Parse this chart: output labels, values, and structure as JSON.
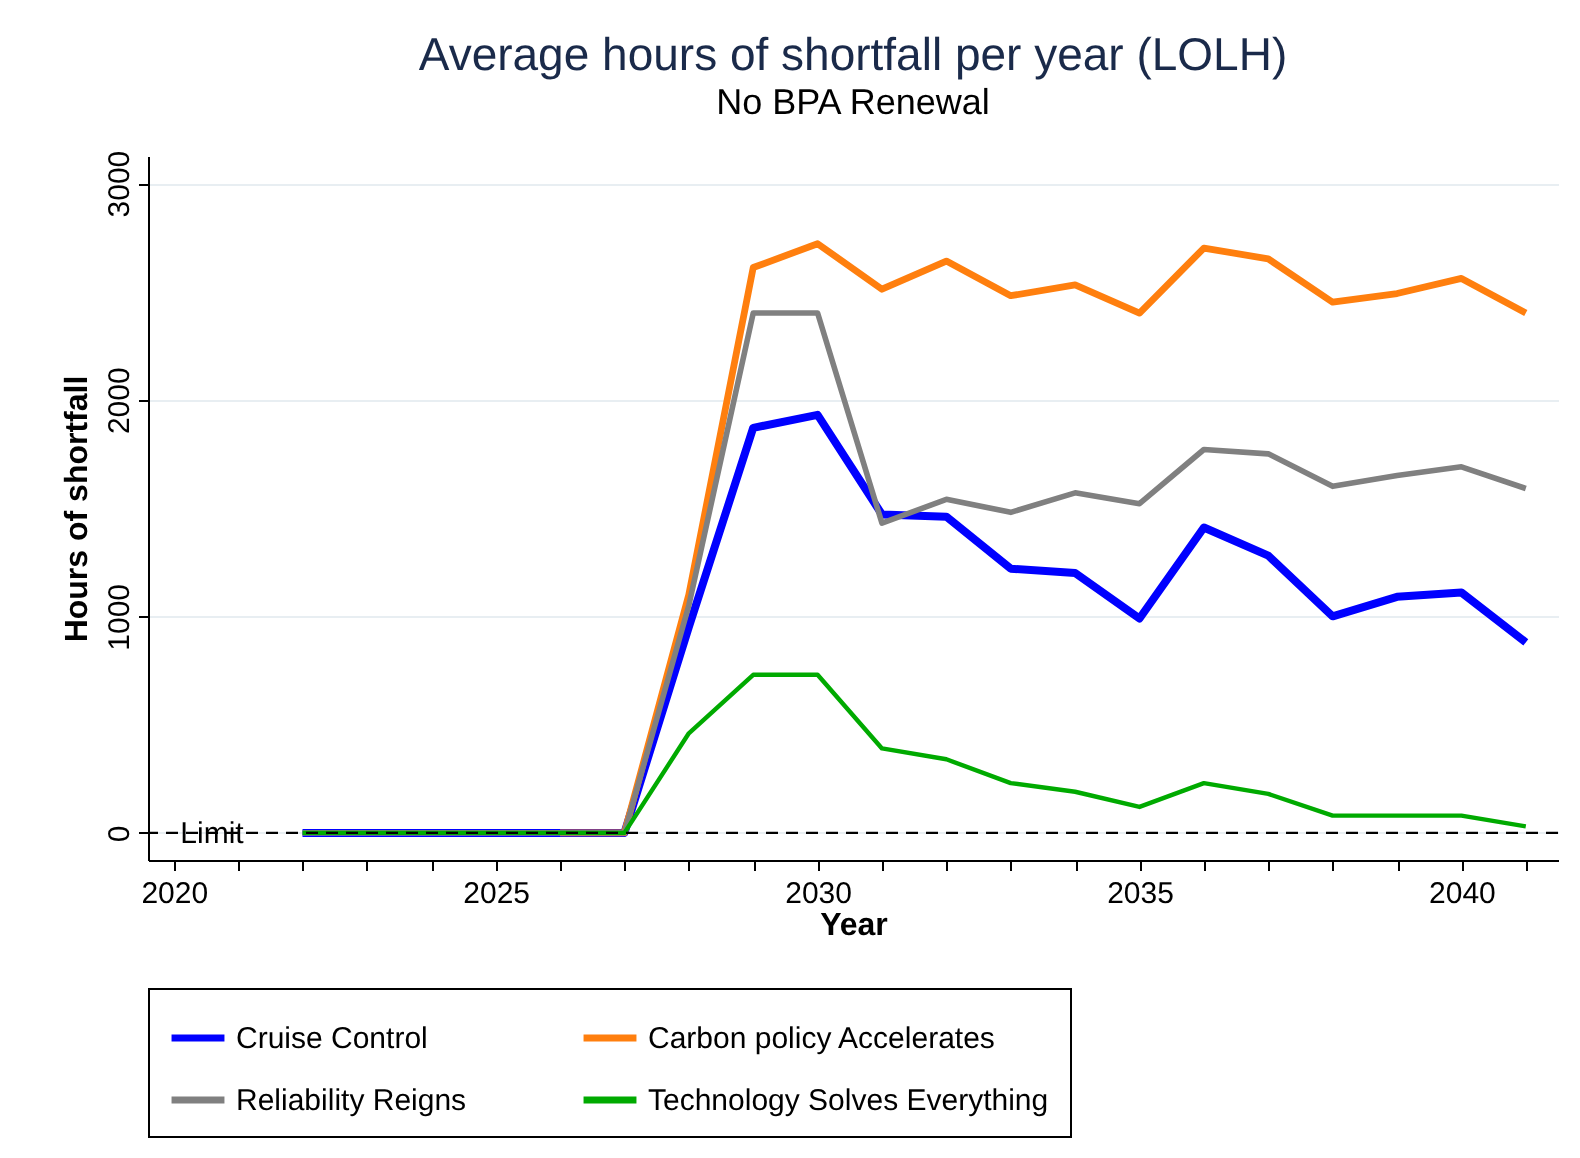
{
  "chart_data": {
    "type": "line",
    "title": "Average hours of shortfall per year (LOLH)",
    "subtitle": "No BPA Renewal",
    "xlabel": "Year",
    "ylabel": "Hours of shortfall",
    "x": [
      2022,
      2023,
      2024,
      2025,
      2026,
      2027,
      2028,
      2029,
      2030,
      2031,
      2032,
      2033,
      2034,
      2035,
      2036,
      2037,
      2038,
      2039,
      2040,
      2041
    ],
    "series": [
      {
        "name": "Cruise Control",
        "color": "#0000ff",
        "values": [
          0,
          0,
          0,
          0,
          0,
          0,
          950,
          1870,
          1930,
          1470,
          1460,
          1220,
          1200,
          990,
          1410,
          1280,
          1000,
          1090,
          1110,
          880
        ]
      },
      {
        "name": "Carbon policy Accelerates",
        "color": "#ff7f0e",
        "values": [
          null,
          null,
          null,
          null,
          0,
          0,
          1100,
          2610,
          2720,
          2510,
          2640,
          2480,
          2530,
          2400,
          2700,
          2650,
          2450,
          2490,
          2560,
          2400
        ]
      },
      {
        "name": "Reliability Reigns",
        "color": "#808080",
        "values": [
          0,
          0,
          0,
          0,
          0,
          0,
          1050,
          2400,
          2400,
          1430,
          1540,
          1480,
          1570,
          1520,
          1770,
          1750,
          1600,
          1650,
          1690,
          1590
        ]
      },
      {
        "name": "Technology Solves Everything",
        "color": "#00aa00",
        "values": [
          0,
          0,
          0,
          0,
          0,
          0,
          460,
          730,
          730,
          390,
          340,
          230,
          190,
          120,
          230,
          180,
          80,
          80,
          80,
          30
        ]
      }
    ],
    "xlim": [
      2019.6,
      2041.5
    ],
    "ylim": [
      -125,
      3125
    ],
    "xticks": [
      2020,
      {
        "value": 2021,
        "label": null
      },
      {
        "value": 2022,
        "label": null
      },
      {
        "value": 2023,
        "label": null
      },
      {
        "value": 2024,
        "label": null
      },
      2025,
      {
        "value": 2026,
        "label": null
      },
      {
        "value": 2027,
        "label": null
      },
      {
        "value": 2028,
        "label": null
      },
      {
        "value": 2029,
        "label": null
      },
      2030,
      {
        "value": 2031,
        "label": null
      },
      {
        "value": 2032,
        "label": null
      },
      {
        "value": 2033,
        "label": null
      },
      {
        "value": 2034,
        "label": null
      },
      2035,
      {
        "value": 2036,
        "label": null
      },
      {
        "value": 2037,
        "label": null
      },
      {
        "value": 2038,
        "label": null
      },
      {
        "value": 2039,
        "label": null
      },
      2040,
      {
        "value": 2041,
        "label": null
      }
    ],
    "yticks": [
      0,
      1000,
      2000,
      3000
    ],
    "ref_lines": [
      {
        "axis": "y",
        "value": 0,
        "label": "Limit",
        "color": "#000000",
        "line_style": "dashed"
      }
    ],
    "grid": "y",
    "legend": "bottom",
    "line_style": "solid",
    "marker": "none"
  }
}
